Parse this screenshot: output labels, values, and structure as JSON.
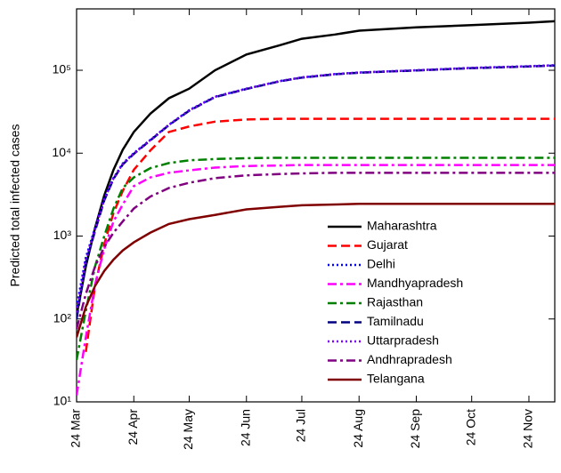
{
  "chart_data": {
    "type": "line",
    "y_label": "Predicted total infected cases",
    "log_y": true,
    "legend": "lower right",
    "x": [
      0,
      5,
      10,
      15,
      20,
      25,
      31,
      40,
      50,
      61,
      75,
      92,
      110,
      122,
      140,
      153,
      184,
      214,
      245,
      259
    ],
    "xlim": [
      0,
      259
    ],
    "xticks": [
      {
        "value": 0,
        "label": "24 Mar"
      },
      {
        "value": 31,
        "label": "24 Apr"
      },
      {
        "value": 61,
        "label": "24 May"
      },
      {
        "value": 92,
        "label": "24 Jun"
      },
      {
        "value": 122,
        "label": "24 Jul"
      },
      {
        "value": 153,
        "label": "24 Aug"
      },
      {
        "value": 184,
        "label": "24 Sep"
      },
      {
        "value": 214,
        "label": "24 Oct"
      },
      {
        "value": 245,
        "label": "24 Nov"
      }
    ],
    "ylim": [
      10,
      550000
    ],
    "yticks": [
      {
        "value": 10,
        "label": "10¹"
      },
      {
        "value": 100,
        "label": "10²"
      },
      {
        "value": 1000,
        "label": "10³"
      },
      {
        "value": 10000,
        "label": "10⁴"
      },
      {
        "value": 100000,
        "label": "10⁵"
      }
    ],
    "series": [
      {
        "name": "Maharashtra",
        "color": "#000000",
        "dash": "solid",
        "values": [
          110,
          430,
          1250,
          3100,
          6300,
          11000,
          18000,
          30000,
          46000,
          60000,
          100000,
          155000,
          200000,
          240000,
          270000,
          300000,
          330000,
          350000,
          375000,
          390000
        ]
      },
      {
        "name": "Gujarat",
        "color": "#ff0000",
        "dash": "dash",
        "values": [
          null,
          40,
          250,
          800,
          1900,
          3500,
          6300,
          10800,
          18000,
          21000,
          24000,
          25500,
          26000,
          26000,
          26000,
          26000,
          26000,
          26000,
          26000,
          26000
        ]
      },
      {
        "name": "Delhi",
        "color": "#0000ff",
        "dash": "dot",
        "values": [
          140,
          550,
          1250,
          2800,
          5000,
          7500,
          10000,
          14500,
          22000,
          33000,
          48000,
          60000,
          74000,
          82000,
          90000,
          94000,
          100000,
          107000,
          112000,
          115000
        ]
      },
      {
        "name": "Mandhyapradesh",
        "color": "#ff00ff",
        "dash": "dashdot",
        "values": [
          12,
          60,
          260,
          700,
          1500,
          2400,
          4000,
          5100,
          5800,
          6200,
          6700,
          7000,
          7100,
          7200,
          7200,
          7200,
          7200,
          7200,
          7200,
          7200
        ]
      },
      {
        "name": "Rajasthan",
        "color": "#008000",
        "dash": "dashdot",
        "values": [
          32,
          125,
          430,
          1000,
          2150,
          3800,
          5100,
          6600,
          7600,
          8200,
          8500,
          8700,
          8800,
          8800,
          8800,
          8800,
          8800,
          8800,
          8800,
          8800
        ]
      },
      {
        "name": "Tamilnadu",
        "color": "#000080",
        "dash": "dash",
        "values": [
          100,
          480,
          1150,
          2700,
          4900,
          7300,
          9800,
          14300,
          21800,
          32500,
          47500,
          59500,
          73500,
          81500,
          89500,
          93500,
          99500,
          106000,
          111000,
          114000
        ]
      },
      {
        "name": "Uttarpradesh",
        "color": "#8000ff",
        "dash": "dot",
        "values": [
          120,
          520,
          1200,
          2750,
          4950,
          7400,
          9900,
          14400,
          21900,
          32800,
          47800,
          59800,
          73800,
          81800,
          89800,
          93800,
          99800,
          106500,
          111500,
          114500
        ]
      },
      {
        "name": "Andhrapradesh",
        "color": "#800080",
        "dash": "dashdot",
        "values": [
          76,
          200,
          430,
          740,
          1100,
          1500,
          2150,
          3000,
          3800,
          4400,
          5000,
          5400,
          5600,
          5700,
          5800,
          5800,
          5800,
          5800,
          5800,
          5800
        ]
      },
      {
        "name": "Telangana",
        "color": "#800000",
        "dash": "solid",
        "values": [
          60,
          140,
          250,
          380,
          520,
          670,
          840,
          1100,
          1400,
          1600,
          1800,
          2100,
          2250,
          2350,
          2400,
          2450,
          2450,
          2450,
          2450,
          2450
        ]
      }
    ]
  }
}
